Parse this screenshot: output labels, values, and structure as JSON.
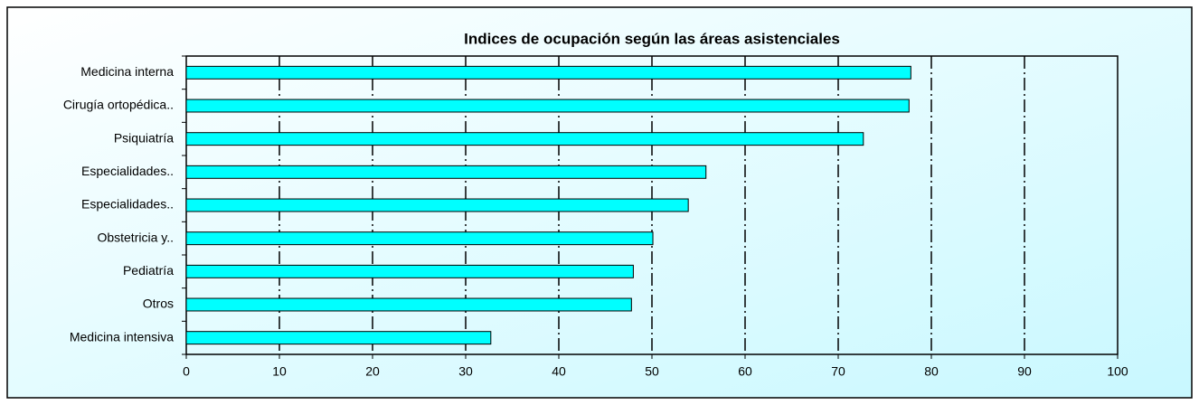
{
  "chart_data": {
    "type": "barh",
    "title": "Indices de ocupación según las áreas asistenciales",
    "categories": [
      "Medicina interna",
      "Cirugía ortopédica..",
      "Psiquiatría",
      "Especialidades..",
      "Especialidades..",
      "Obstetricia y..",
      "Pediatría",
      "Otros",
      "Medicina intensiva"
    ],
    "values": [
      77.8,
      77.6,
      72.7,
      55.8,
      53.9,
      50.1,
      48,
      47.8,
      32.7
    ],
    "color": "#00ffff",
    "xlim": [
      0,
      100
    ],
    "xticks": [
      0,
      10,
      20,
      30,
      40,
      50,
      60,
      70,
      80,
      90,
      100
    ],
    "grid": true
  }
}
